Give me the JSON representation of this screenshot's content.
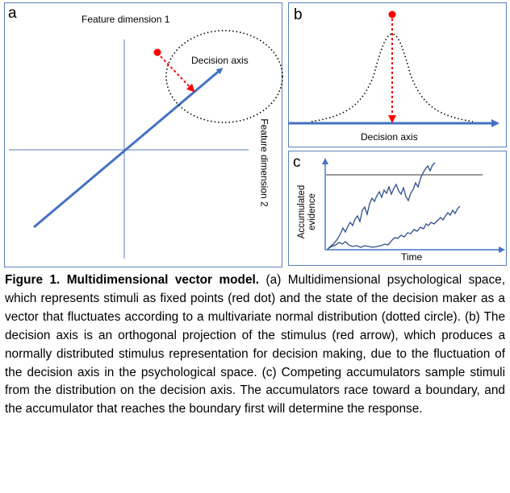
{
  "panel_a": {
    "letter": "a",
    "feature_dim_1": "Feature dimension 1",
    "feature_dim_2": "Feature dimension 2",
    "decision_axis": "Decision axis",
    "colors": {
      "axis": "#4472c4",
      "stimulus": "#ff0000",
      "circle": "#000000"
    }
  },
  "panel_b": {
    "letter": "b",
    "decision_axis": "Decision axis"
  },
  "panel_c": {
    "letter": "c",
    "ylabel_line1": "Accumulated",
    "ylabel_line2": "evidence",
    "xlabel": "Time"
  },
  "caption": {
    "label": "Figure 1. Multidimensional vector model.",
    "text": " (a) Multidimensional psychological space, which represents stimuli as fixed points (red dot) and the state of the decision maker as a vector that fluctuates according to a multivariate normal distribution (dotted circle). (b) The decision axis is an orthogonal projection of the stimulus (red arrow), which produces a normally distributed stimulus representation for decision making, due to the fluctuation of the decision axis in the psychological space. (c) Competing accumulators sample stimuli from the distribution on the decision axis. The accumulators race toward a boundary, and the accumulator that reaches the boundary first will determine the response."
  }
}
